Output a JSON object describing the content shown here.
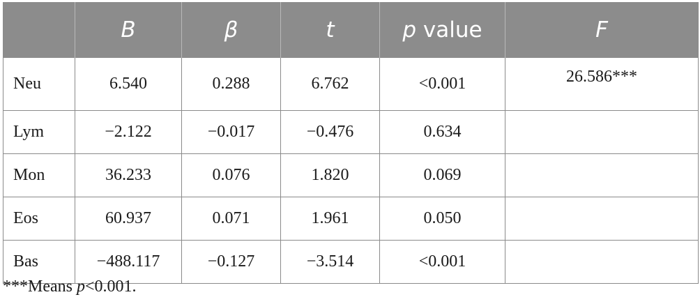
{
  "table": {
    "headers": [
      "",
      "B",
      "β",
      "t",
      "p",
      "F"
    ],
    "header_p_suffix": " value",
    "rows": [
      {
        "label": "Neu",
        "B": "6.540",
        "beta": "0.288",
        "t": "6.762",
        "p": "<0.001",
        "F": "26.586***"
      },
      {
        "label": "Lym",
        "B": "−2.122",
        "beta": "−0.017",
        "t": "−0.476",
        "p": "0.634",
        "F": ""
      },
      {
        "label": "Mon",
        "B": "36.233",
        "beta": "0.076",
        "t": "1.820",
        "p": "0.069",
        "F": ""
      },
      {
        "label": "Eos",
        "B": "60.937",
        "beta": "0.071",
        "t": "1.961",
        "p": "0.050",
        "F": ""
      },
      {
        "label": "Bas",
        "B": "−488.117",
        "beta": "−0.127",
        "t": "−3.514",
        "p": "<0.001",
        "F": ""
      }
    ]
  },
  "footnote": {
    "prefix": "***Means ",
    "italic": "p",
    "suffix": "<0.001."
  }
}
